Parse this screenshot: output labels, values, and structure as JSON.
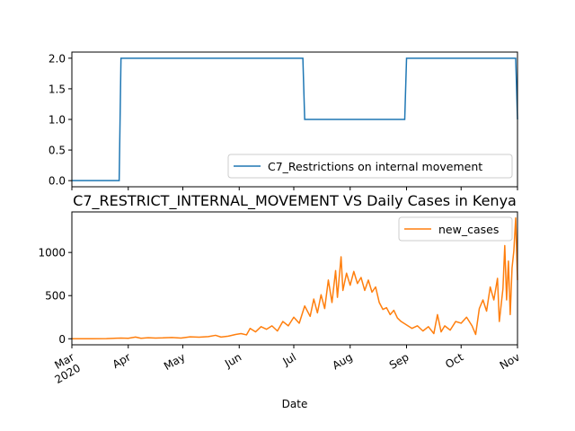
{
  "chart_data": [
    {
      "type": "line",
      "title": "",
      "xlabel": "",
      "ylabel": "",
      "ylim": [
        -0.1,
        2.1
      ],
      "yticks": [
        0.0,
        0.5,
        1.0,
        1.5,
        2.0
      ],
      "ytick_labels": [
        "0.0",
        "0.5",
        "1.0",
        "1.5",
        "2.0"
      ],
      "legend_position": "lower-right",
      "grid": false,
      "series": [
        {
          "name": "C7_Restrictions on internal movement",
          "color": "#1f77b4",
          "points": [
            [
              "2020-03-01",
              0
            ],
            [
              "2020-03-27",
              0
            ],
            [
              "2020-03-28",
              2
            ],
            [
              "2020-07-06",
              2
            ],
            [
              "2020-07-07",
              1
            ],
            [
              "2020-08-31",
              1
            ],
            [
              "2020-09-01",
              2
            ],
            [
              "2020-10-31",
              2
            ],
            [
              "2020-11-01",
              1
            ]
          ]
        }
      ]
    },
    {
      "type": "line",
      "title": "C7_RESTRICT_INTERNAL_MOVEMENT VS Daily Cases in Kenya",
      "xlabel": "Date",
      "ylabel": "",
      "ylim": [
        -70,
        1470
      ],
      "yticks": [
        0,
        500,
        1000
      ],
      "ytick_labels": [
        "0",
        "500",
        "1000"
      ],
      "xlim": [
        "2020-03-01",
        "2020-11-01"
      ],
      "xticks": [
        "2020-03-01",
        "2020-04-01",
        "2020-05-01",
        "2020-06-01",
        "2020-07-01",
        "2020-08-01",
        "2020-09-01",
        "2020-10-01",
        "2020-11-01"
      ],
      "xtick_labels": [
        "Mar\n2020",
        "Apr",
        "May",
        "Jun",
        "Jul",
        "Aug",
        "Sep",
        "Oct",
        "Nov"
      ],
      "legend_position": "top-right",
      "grid": false,
      "series": [
        {
          "name": "new_cases",
          "color": "#ff7f0e",
          "points": [
            [
              "2020-03-01",
              0
            ],
            [
              "2020-03-12",
              0
            ],
            [
              "2020-03-20",
              2
            ],
            [
              "2020-03-28",
              8
            ],
            [
              "2020-04-01",
              5
            ],
            [
              "2020-04-05",
              20
            ],
            [
              "2020-04-08",
              5
            ],
            [
              "2020-04-12",
              12
            ],
            [
              "2020-04-16",
              8
            ],
            [
              "2020-04-20",
              10
            ],
            [
              "2020-04-25",
              15
            ],
            [
              "2020-04-30",
              8
            ],
            [
              "2020-05-05",
              22
            ],
            [
              "2020-05-10",
              18
            ],
            [
              "2020-05-15",
              25
            ],
            [
              "2020-05-19",
              40
            ],
            [
              "2020-05-22",
              20
            ],
            [
              "2020-05-26",
              30
            ],
            [
              "2020-05-30",
              50
            ],
            [
              "2020-06-02",
              60
            ],
            [
              "2020-06-05",
              45
            ],
            [
              "2020-06-07",
              120
            ],
            [
              "2020-06-10",
              80
            ],
            [
              "2020-06-13",
              140
            ],
            [
              "2020-06-16",
              110
            ],
            [
              "2020-06-19",
              150
            ],
            [
              "2020-06-22",
              90
            ],
            [
              "2020-06-25",
              200
            ],
            [
              "2020-06-28",
              150
            ],
            [
              "2020-07-01",
              250
            ],
            [
              "2020-07-04",
              180
            ],
            [
              "2020-07-07",
              380
            ],
            [
              "2020-07-10",
              260
            ],
            [
              "2020-07-12",
              460
            ],
            [
              "2020-07-14",
              300
            ],
            [
              "2020-07-16",
              510
            ],
            [
              "2020-07-18",
              350
            ],
            [
              "2020-07-20",
              680
            ],
            [
              "2020-07-22",
              420
            ],
            [
              "2020-07-24",
              790
            ],
            [
              "2020-07-25",
              480
            ],
            [
              "2020-07-27",
              950
            ],
            [
              "2020-07-28",
              560
            ],
            [
              "2020-07-30",
              760
            ],
            [
              "2020-08-01",
              620
            ],
            [
              "2020-08-03",
              780
            ],
            [
              "2020-08-05",
              640
            ],
            [
              "2020-08-07",
              710
            ],
            [
              "2020-08-09",
              560
            ],
            [
              "2020-08-11",
              680
            ],
            [
              "2020-08-13",
              540
            ],
            [
              "2020-08-15",
              600
            ],
            [
              "2020-08-17",
              420
            ],
            [
              "2020-08-19",
              340
            ],
            [
              "2020-08-21",
              360
            ],
            [
              "2020-08-23",
              280
            ],
            [
              "2020-08-25",
              330
            ],
            [
              "2020-08-27",
              240
            ],
            [
              "2020-08-29",
              200
            ],
            [
              "2020-09-01",
              160
            ],
            [
              "2020-09-04",
              120
            ],
            [
              "2020-09-07",
              150
            ],
            [
              "2020-09-10",
              90
            ],
            [
              "2020-09-13",
              140
            ],
            [
              "2020-09-16",
              60
            ],
            [
              "2020-09-18",
              280
            ],
            [
              "2020-09-20",
              80
            ],
            [
              "2020-09-22",
              150
            ],
            [
              "2020-09-25",
              100
            ],
            [
              "2020-09-28",
              200
            ],
            [
              "2020-10-01",
              180
            ],
            [
              "2020-10-04",
              250
            ],
            [
              "2020-10-07",
              150
            ],
            [
              "2020-10-09",
              50
            ],
            [
              "2020-10-11",
              350
            ],
            [
              "2020-10-13",
              450
            ],
            [
              "2020-10-15",
              320
            ],
            [
              "2020-10-17",
              600
            ],
            [
              "2020-10-19",
              450
            ],
            [
              "2020-10-21",
              700
            ],
            [
              "2020-10-22",
              200
            ],
            [
              "2020-10-24",
              580
            ],
            [
              "2020-10-25",
              1080
            ],
            [
              "2020-10-26",
              450
            ],
            [
              "2020-10-27",
              900
            ],
            [
              "2020-10-28",
              280
            ],
            [
              "2020-10-29",
              820
            ],
            [
              "2020-10-30",
              1020
            ],
            [
              "2020-10-31",
              1400
            ],
            [
              "2020-11-01",
              680
            ]
          ]
        }
      ]
    }
  ]
}
